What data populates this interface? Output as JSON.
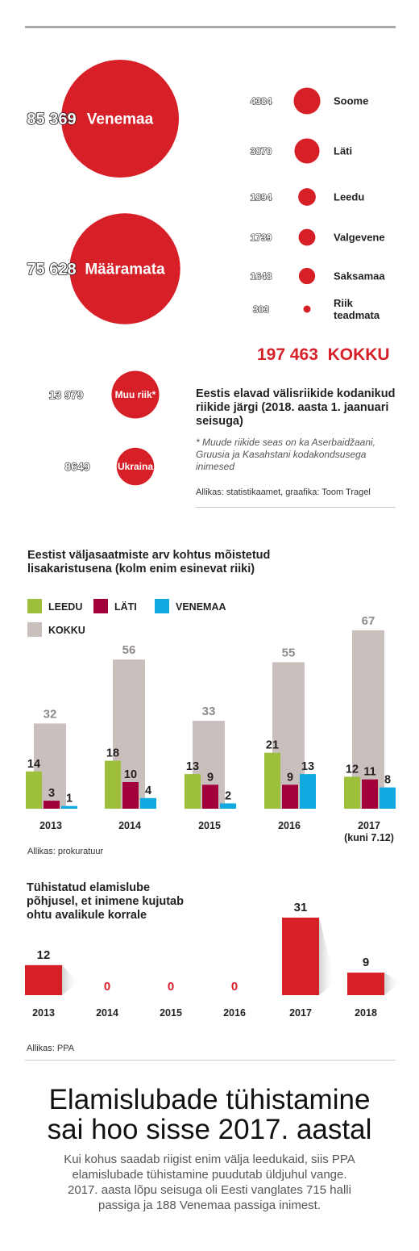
{
  "colors": {
    "red": "#d71f27",
    "leedu": "#9ebf3b",
    "lati": "#a2003b",
    "venemaa": "#12a9e0",
    "kokku": "#c9c0bd",
    "value_grey": "#8f8a8b"
  },
  "chart_data": [
    {
      "type": "bubble",
      "title": "Eestis elavad välisriikide kodanikud riikide järgi (2018. aasta 1. jaanuari seisuga)",
      "note": "* Muude riikide seas on ka Aserbaidžaani, Gruusia ja Kasahstani kodakondsusega inimesed",
      "source": "Allikas: statistikaamet, graafika: Toom Tragel",
      "total_value": "197 463",
      "total_label": "KOKKU",
      "items": [
        {
          "label": "Venemaa",
          "value": 85369,
          "value_label": "85 369"
        },
        {
          "label": "Määramata",
          "value": 75628,
          "value_label": "75 628"
        },
        {
          "label": "Muu riik*",
          "value": 13979,
          "value_label": "13 979"
        },
        {
          "label": "Ukraina",
          "value": 8649,
          "value_label": "8649"
        },
        {
          "label": "Soome",
          "value": 4384,
          "value_label": "4384"
        },
        {
          "label": "Läti",
          "value": 3870,
          "value_label": "3870"
        },
        {
          "label": "Leedu",
          "value": 1894,
          "value_label": "1894"
        },
        {
          "label": "Valgevene",
          "value": 1739,
          "value_label": "1739"
        },
        {
          "label": "Saksamaa",
          "value": 1648,
          "value_label": "1648"
        },
        {
          "label": "Riik teadmata",
          "value": 303,
          "value_label": "303"
        }
      ]
    },
    {
      "type": "bar",
      "title": "Eestist väljasaatmiste arv kohtus mõistetud lisakaristusena (kolm enim esinevat riiki)",
      "source": "Allikas: prokuratuur",
      "categories": [
        "2013",
        "2014",
        "2015",
        "2016",
        "2017"
      ],
      "category_sublabels": [
        "",
        "",
        "",
        "",
        "(kuni 7.12)"
      ],
      "series": [
        {
          "name": "LEEDU",
          "values": [
            14,
            18,
            13,
            21,
            12
          ]
        },
        {
          "name": "LÄTI",
          "values": [
            3,
            10,
            9,
            9,
            11
          ]
        },
        {
          "name": "VENEMAA",
          "values": [
            1,
            4,
            2,
            13,
            8
          ]
        },
        {
          "name": "KOKKU",
          "values": [
            32,
            56,
            33,
            55,
            67
          ]
        }
      ],
      "legend": "top-left"
    },
    {
      "type": "bar",
      "title": "Tühistatud elamislube põhjusel, et inimene kujutab ohtu avalikule korrale",
      "source": "Allikas: PPA",
      "categories": [
        "2013",
        "2014",
        "2015",
        "2016",
        "2017",
        "2018"
      ],
      "values": [
        12,
        0,
        0,
        0,
        31,
        9
      ]
    }
  ],
  "article": {
    "headline_line1": "Elamislubade tühistamine",
    "headline_line2": "sai hoo sisse 2017. aastal",
    "lead_line1": "Kui kohus saadab riigist enim välja leedukaid, siis PPA",
    "lead_line2": "elamislubade tühistamine puudutab üldjuhul vange.",
    "lead_line3": "2017. aasta lõpu seisuga oli Eesti vanglates 715 halli",
    "lead_line4": "passiga ja 188 Venemaa passiga inimest."
  }
}
